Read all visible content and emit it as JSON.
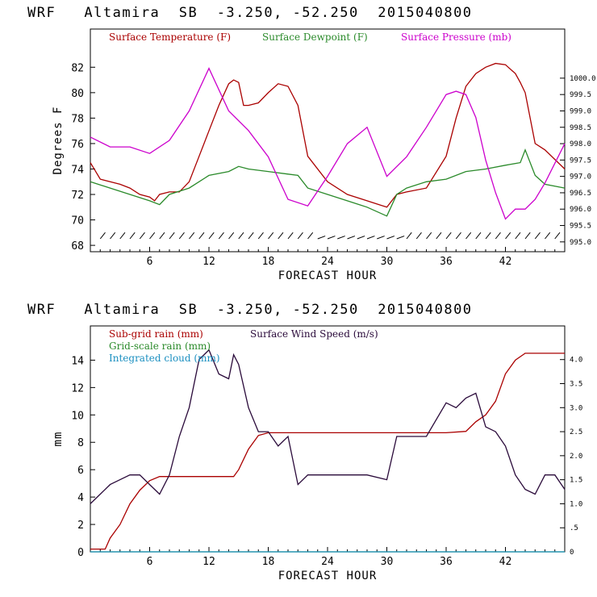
{
  "chart_data": [
    {
      "type": "line",
      "title": "WRF   Altamira  SB  -3.250, -52.250  2015040800",
      "xlabel": "FORECAST HOUR",
      "ylabel": "Degrees F",
      "y2label": "",
      "xlim": [
        0,
        48
      ],
      "ylim": [
        67.5,
        85
      ],
      "y2lim": [
        994.7,
        1001.5
      ],
      "xticks": [
        "6",
        "12",
        "18",
        "24",
        "30",
        "36",
        "42"
      ],
      "yticks": [
        "68",
        "70",
        "72",
        "74",
        "76",
        "78",
        "80",
        "82"
      ],
      "y2ticks": [
        "995.0",
        "995.5",
        "996.0",
        "996.5",
        "997.0",
        "997.5",
        "998.0",
        "998.5",
        "999.0",
        "999.5",
        "1000.0"
      ],
      "series": [
        {
          "name": "Surface Temperature (F)",
          "color": "#aa0000",
          "axis": "left",
          "x": [
            0,
            1,
            2,
            3,
            4,
            5,
            6,
            6.5,
            7,
            8,
            9,
            10,
            11,
            12,
            13,
            14,
            14.5,
            15,
            15.5,
            16,
            17,
            18,
            19,
            20,
            21,
            22,
            24,
            26,
            28,
            30,
            31,
            32,
            34,
            36,
            37,
            38,
            39,
            40,
            41,
            42,
            43,
            43.5,
            44,
            45,
            46,
            48
          ],
          "values": [
            74.5,
            73.2,
            73.0,
            72.8,
            72.5,
            72.0,
            71.8,
            71.5,
            72.0,
            72.2,
            72.2,
            73.0,
            75.0,
            77.0,
            79.0,
            80.7,
            81.0,
            80.8,
            79.0,
            79.0,
            79.2,
            80.0,
            80.7,
            80.5,
            79.0,
            75.0,
            73.0,
            72.0,
            71.5,
            71.0,
            72.0,
            72.2,
            72.5,
            75.0,
            78.0,
            80.5,
            81.5,
            82.0,
            82.3,
            82.2,
            81.5,
            80.8,
            80.0,
            76.0,
            75.5,
            74.0
          ]
        },
        {
          "name": "Surface Dewpoint (F)",
          "color": "#2a8a2a",
          "axis": "left",
          "x": [
            0,
            2,
            4,
            6,
            7,
            8,
            10,
            12,
            14,
            15,
            16,
            18,
            20,
            21,
            22,
            24,
            26,
            28,
            30,
            31,
            32,
            34,
            36,
            38,
            40,
            42,
            43.5,
            44,
            45,
            46,
            48
          ],
          "values": [
            73.0,
            72.5,
            72.0,
            71.5,
            71.2,
            72.0,
            72.5,
            73.5,
            73.8,
            74.2,
            74.0,
            73.8,
            73.6,
            73.5,
            72.5,
            72.0,
            71.5,
            71.0,
            70.3,
            72.0,
            72.5,
            73.0,
            73.2,
            73.8,
            74.0,
            74.3,
            74.5,
            75.5,
            73.5,
            72.8,
            72.5
          ]
        },
        {
          "name": "Surface Pressure (mb)",
          "color": "#cc00cc",
          "axis": "right",
          "x": [
            0,
            2,
            4,
            6,
            8,
            10,
            12,
            14,
            16,
            18,
            20,
            22,
            24,
            26,
            28,
            30,
            32,
            34,
            36,
            37,
            38,
            39,
            40,
            41,
            42,
            43,
            44,
            45,
            46,
            48
          ],
          "values": [
            998.2,
            997.9,
            997.9,
            997.7,
            998.1,
            999.0,
            1000.3,
            999.0,
            998.4,
            997.6,
            996.3,
            996.1,
            997.0,
            998.0,
            998.5,
            997.0,
            997.6,
            998.5,
            999.5,
            999.6,
            999.5,
            998.8,
            997.5,
            996.5,
            995.7,
            996.0,
            996.0,
            996.3,
            996.8,
            998.0
          ]
        }
      ],
      "wind_barbs": "row of wind barbs along bottom of panel",
      "legend": [
        "Surface Temperature (F)",
        "Surface Dewpoint (F)",
        "Surface Pressure (mb)"
      ]
    },
    {
      "type": "line",
      "title": "WRF   Altamira  SB  -3.250, -52.250  2015040800",
      "xlabel": "FORECAST HOUR",
      "ylabel": "mm",
      "xlim": [
        0,
        48
      ],
      "ylim": [
        0,
        16.5
      ],
      "y2lim": [
        0,
        4.7
      ],
      "xticks": [
        "6",
        "12",
        "18",
        "24",
        "30",
        "36",
        "42"
      ],
      "yticks": [
        "0",
        "2",
        "4",
        "6",
        "8",
        "10",
        "12",
        "14"
      ],
      "y2ticks": [
        "0",
        ".5",
        "1.0",
        "1.5",
        "2.0",
        "2.5",
        "3.0",
        "3.5",
        "4.0"
      ],
      "series": [
        {
          "name": "Sub-grid rain (mm)",
          "color": "#aa0000",
          "axis": "left",
          "x": [
            0,
            1.5,
            2,
            3,
            4,
            5,
            6,
            7,
            8,
            14.5,
            15,
            16,
            17,
            18,
            30,
            36,
            38,
            39,
            40,
            41,
            42,
            43,
            44,
            48
          ],
          "values": [
            0.2,
            0.2,
            1.0,
            2.0,
            3.5,
            4.5,
            5.2,
            5.5,
            5.5,
            5.5,
            6.0,
            7.5,
            8.5,
            8.7,
            8.7,
            8.7,
            8.8,
            9.5,
            10.0,
            11.0,
            13.0,
            14.0,
            14.5,
            14.5
          ]
        },
        {
          "name": "Grid-scale rain (mm)",
          "color": "#2a8a2a",
          "axis": "left",
          "x": [
            0,
            48
          ],
          "values": [
            0,
            0
          ]
        },
        {
          "name": "Integrated cloud (mm)",
          "color": "#1a8fc0",
          "axis": "left",
          "x": [
            0,
            48
          ],
          "values": [
            0,
            0
          ]
        },
        {
          "name": "Surface Wind Speed (m/s)",
          "color": "#2a0a3a",
          "axis": "right",
          "x": [
            0,
            1,
            2,
            3,
            4,
            5,
            6,
            7,
            8,
            9,
            10,
            11,
            12,
            13,
            14,
            14.5,
            15,
            16,
            17,
            18,
            19,
            20,
            21,
            22,
            24,
            26,
            28,
            30,
            31,
            32,
            34,
            36,
            37,
            38,
            39,
            40,
            41,
            42,
            43,
            44,
            45,
            46,
            47,
            48
          ],
          "values": [
            1.0,
            1.2,
            1.4,
            1.5,
            1.6,
            1.6,
            1.4,
            1.2,
            1.6,
            2.4,
            3.0,
            4.0,
            4.2,
            3.7,
            3.6,
            4.1,
            3.9,
            3.0,
            2.5,
            2.5,
            2.2,
            2.4,
            1.4,
            1.6,
            1.6,
            1.6,
            1.6,
            1.5,
            2.4,
            2.4,
            2.4,
            3.1,
            3.0,
            3.2,
            3.3,
            2.6,
            2.5,
            2.2,
            1.6,
            1.3,
            1.2,
            1.6,
            1.6,
            1.3
          ]
        }
      ],
      "legend": [
        "Sub-grid rain (mm)",
        "Surface Wind Speed (m/s)",
        "Grid-scale rain (mm)",
        "Integrated cloud (mm)"
      ]
    }
  ]
}
